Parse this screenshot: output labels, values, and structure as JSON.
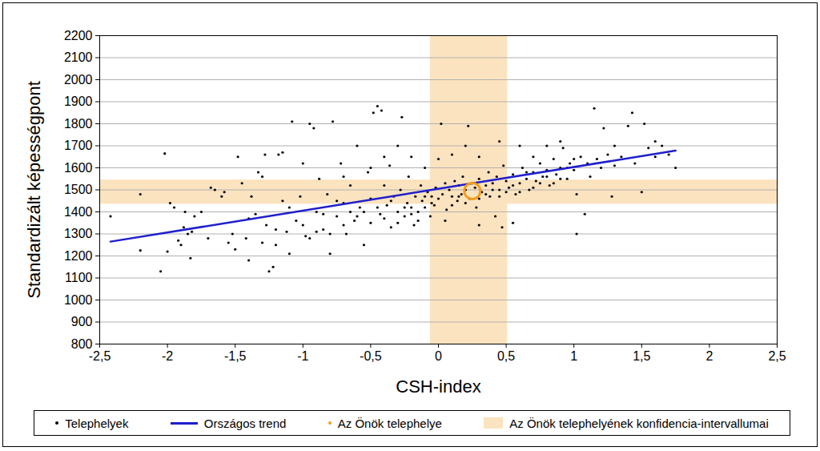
{
  "chart_data": {
    "type": "scatter",
    "x_label": "CSH-index",
    "y_label": "Standardizált képességpont",
    "xlim": [
      -2.5,
      2.5
    ],
    "xticks": [
      {
        "value": -2.5,
        "label": "-2,5"
      },
      -2,
      {
        "value": -1.5,
        "label": "-1,5"
      },
      -1,
      {
        "value": -0.5,
        "label": "-0,5"
      },
      0,
      {
        "value": 0.5,
        "label": "0,5"
      },
      1,
      {
        "value": 1.5,
        "label": "1,5"
      },
      2,
      {
        "value": 2.5,
        "label": "2,5"
      }
    ],
    "ylim": [
      800,
      2200
    ],
    "yticks": [
      800,
      900,
      1000,
      1100,
      1200,
      1300,
      1400,
      1500,
      1600,
      1700,
      1800,
      1900,
      2000,
      2100,
      2200
    ],
    "grid": true,
    "legend": "bottom",
    "confidence_intervals": {
      "name": "Az Önök telephelyének konfidencia-intervallumai",
      "color": "#fbe3bf",
      "x": [
        -0.06,
        0.51
      ],
      "y": [
        1435,
        1545
      ]
    },
    "series": [
      {
        "name": "Telephelyek",
        "type": "scatter",
        "color": "#000000",
        "marker": "dot",
        "points": [
          [
            -2.42,
            1380
          ],
          [
            -2.2,
            1480
          ],
          [
            -2.2,
            1225
          ],
          [
            -2.05,
            1130
          ],
          [
            -2.02,
            1665
          ],
          [
            -2.0,
            1220
          ],
          [
            -1.98,
            1440
          ],
          [
            -1.95,
            1420
          ],
          [
            -1.92,
            1270
          ],
          [
            -1.9,
            1250
          ],
          [
            -1.88,
            1330
          ],
          [
            -1.87,
            1400
          ],
          [
            -1.85,
            1300
          ],
          [
            -1.83,
            1190
          ],
          [
            -1.82,
            1310
          ],
          [
            -1.8,
            1380
          ],
          [
            -1.75,
            1400
          ],
          [
            -1.7,
            1280
          ],
          [
            -1.68,
            1510
          ],
          [
            -1.65,
            1500
          ],
          [
            -1.6,
            1470
          ],
          [
            -1.58,
            1490
          ],
          [
            -1.55,
            1260
          ],
          [
            -1.52,
            1300
          ],
          [
            -1.5,
            1230
          ],
          [
            -1.48,
            1650
          ],
          [
            -1.45,
            1530
          ],
          [
            -1.42,
            1280
          ],
          [
            -1.4,
            1370
          ],
          [
            -1.4,
            1180
          ],
          [
            -1.38,
            1470
          ],
          [
            -1.35,
            1390
          ],
          [
            -1.33,
            1580
          ],
          [
            -1.3,
            1560
          ],
          [
            -1.3,
            1260
          ],
          [
            -1.28,
            1660
          ],
          [
            -1.27,
            1340
          ],
          [
            -1.25,
            1130
          ],
          [
            -1.22,
            1150
          ],
          [
            -1.2,
            1250
          ],
          [
            -1.2,
            1320
          ],
          [
            -1.18,
            1660
          ],
          [
            -1.15,
            1670
          ],
          [
            -1.15,
            1450
          ],
          [
            -1.12,
            1310
          ],
          [
            -1.1,
            1420
          ],
          [
            -1.1,
            1210
          ],
          [
            -1.08,
            1810
          ],
          [
            -1.05,
            1360
          ],
          [
            -1.02,
            1470
          ],
          [
            -1.0,
            1620
          ],
          [
            -1.0,
            1340
          ],
          [
            -0.98,
            1290
          ],
          [
            -0.95,
            1800
          ],
          [
            -0.95,
            1280
          ],
          [
            -0.92,
            1780
          ],
          [
            -0.9,
            1400
          ],
          [
            -0.9,
            1310
          ],
          [
            -0.88,
            1550
          ],
          [
            -0.85,
            1320
          ],
          [
            -0.85,
            1390
          ],
          [
            -0.82,
            1480
          ],
          [
            -0.8,
            1210
          ],
          [
            -0.8,
            1300
          ],
          [
            -0.78,
            1810
          ],
          [
            -0.75,
            1380
          ],
          [
            -0.75,
            1450
          ],
          [
            -0.72,
            1620
          ],
          [
            -0.7,
            1440
          ],
          [
            -0.7,
            1340
          ],
          [
            -0.7,
            1560
          ],
          [
            -0.68,
            1300
          ],
          [
            -0.65,
            1520
          ],
          [
            -0.65,
            1400
          ],
          [
            -0.62,
            1360
          ],
          [
            -0.6,
            1700
          ],
          [
            -0.6,
            1380
          ],
          [
            -0.58,
            1420
          ],
          [
            -0.55,
            1250
          ],
          [
            -0.55,
            1400
          ],
          [
            -0.52,
            1580
          ],
          [
            -0.5,
            1460
          ],
          [
            -0.5,
            1350
          ],
          [
            -0.5,
            1600
          ],
          [
            -0.48,
            1850
          ],
          [
            -0.45,
            1880
          ],
          [
            -0.45,
            1420
          ],
          [
            -0.43,
            1390
          ],
          [
            -0.42,
            1860
          ],
          [
            -0.4,
            1520
          ],
          [
            -0.4,
            1370
          ],
          [
            -0.4,
            1650
          ],
          [
            -0.38,
            1430
          ],
          [
            -0.36,
            1610
          ],
          [
            -0.35,
            1330
          ],
          [
            -0.35,
            1450
          ],
          [
            -0.33,
            1470
          ],
          [
            -0.3,
            1400
          ],
          [
            -0.3,
            1350
          ],
          [
            -0.3,
            1700
          ],
          [
            -0.28,
            1500
          ],
          [
            -0.27,
            1830
          ],
          [
            -0.25,
            1380
          ],
          [
            -0.25,
            1420
          ],
          [
            -0.23,
            1440
          ],
          [
            -0.22,
            1560
          ],
          [
            -0.2,
            1420
          ],
          [
            -0.2,
            1390
          ],
          [
            -0.2,
            1650
          ],
          [
            -0.18,
            1340
          ],
          [
            -0.17,
            1470
          ],
          [
            -0.15,
            1400
          ],
          [
            -0.15,
            1360
          ],
          [
            -0.13,
            1520
          ],
          [
            -0.12,
            1450
          ],
          [
            -0.1,
            1420
          ],
          [
            -0.1,
            1470
          ],
          [
            -0.1,
            1600
          ],
          [
            -0.08,
            1490
          ],
          [
            -0.06,
            1380
          ],
          [
            -0.05,
            1470
          ],
          [
            -0.05,
            1440
          ],
          [
            -0.03,
            1430
          ],
          [
            -0.02,
            1510
          ],
          [
            0.0,
            1460
          ],
          [
            0.0,
            1640
          ],
          [
            0.02,
            1800
          ],
          [
            0.03,
            1480
          ],
          [
            0.05,
            1530
          ],
          [
            0.05,
            1360
          ],
          [
            0.06,
            1410
          ],
          [
            0.08,
            1500
          ],
          [
            0.1,
            1470
          ],
          [
            0.1,
            1430
          ],
          [
            0.1,
            1660
          ],
          [
            0.12,
            1540
          ],
          [
            0.14,
            1450
          ],
          [
            0.15,
            1520
          ],
          [
            0.15,
            1470
          ],
          [
            0.17,
            1480
          ],
          [
            0.18,
            1560
          ],
          [
            0.2,
            1500
          ],
          [
            0.2,
            1440
          ],
          [
            0.2,
            1700
          ],
          [
            0.22,
            1790
          ],
          [
            0.23,
            1460
          ],
          [
            0.25,
            1530
          ],
          [
            0.27,
            1510
          ],
          [
            0.28,
            1420
          ],
          [
            0.3,
            1550
          ],
          [
            0.3,
            1460
          ],
          [
            0.3,
            1650
          ],
          [
            0.3,
            1340
          ],
          [
            0.32,
            1490
          ],
          [
            0.35,
            1520
          ],
          [
            0.35,
            1480
          ],
          [
            0.37,
            1580
          ],
          [
            0.38,
            1470
          ],
          [
            0.4,
            1530
          ],
          [
            0.4,
            1500
          ],
          [
            0.42,
            1380
          ],
          [
            0.43,
            1560
          ],
          [
            0.45,
            1500
          ],
          [
            0.45,
            1470
          ],
          [
            0.45,
            1720
          ],
          [
            0.47,
            1330
          ],
          [
            0.48,
            1610
          ],
          [
            0.5,
            1540
          ],
          [
            0.5,
            1490
          ],
          [
            0.52,
            1510
          ],
          [
            0.55,
            1570
          ],
          [
            0.55,
            1520
          ],
          [
            0.55,
            1350
          ],
          [
            0.57,
            1480
          ],
          [
            0.6,
            1530
          ],
          [
            0.6,
            1490
          ],
          [
            0.6,
            1700
          ],
          [
            0.62,
            1600
          ],
          [
            0.65,
            1550
          ],
          [
            0.65,
            1580
          ],
          [
            0.67,
            1500
          ],
          [
            0.7,
            1580
          ],
          [
            0.7,
            1510
          ],
          [
            0.7,
            1650
          ],
          [
            0.72,
            1540
          ],
          [
            0.75,
            1620
          ],
          [
            0.75,
            1530
          ],
          [
            0.77,
            1560
          ],
          [
            0.8,
            1590
          ],
          [
            0.8,
            1560
          ],
          [
            0.8,
            1700
          ],
          [
            0.82,
            1520
          ],
          [
            0.85,
            1640
          ],
          [
            0.85,
            1530
          ],
          [
            0.87,
            1570
          ],
          [
            0.9,
            1600
          ],
          [
            0.9,
            1550
          ],
          [
            0.9,
            1720
          ],
          [
            0.92,
            1690
          ],
          [
            0.95,
            1550
          ],
          [
            0.95,
            1600
          ],
          [
            0.97,
            1620
          ],
          [
            1.0,
            1590
          ],
          [
            1.0,
            1640
          ],
          [
            1.02,
            1480
          ],
          [
            1.02,
            1300
          ],
          [
            1.05,
            1650
          ],
          [
            1.08,
            1390
          ],
          [
            1.1,
            1620
          ],
          [
            1.12,
            1560
          ],
          [
            1.15,
            1870
          ],
          [
            1.17,
            1640
          ],
          [
            1.2,
            1600
          ],
          [
            1.22,
            1780
          ],
          [
            1.25,
            1660
          ],
          [
            1.28,
            1470
          ],
          [
            1.3,
            1610
          ],
          [
            1.3,
            1700
          ],
          [
            1.35,
            1650
          ],
          [
            1.4,
            1790
          ],
          [
            1.43,
            1850
          ],
          [
            1.45,
            1620
          ],
          [
            1.5,
            1490
          ],
          [
            1.52,
            1800
          ],
          [
            1.55,
            1690
          ],
          [
            1.6,
            1720
          ],
          [
            1.6,
            1650
          ],
          [
            1.65,
            1700
          ],
          [
            1.7,
            1660
          ],
          [
            1.75,
            1600
          ]
        ]
      },
      {
        "name": "Országos trend",
        "type": "line",
        "color": "#1f1fcc",
        "line_style": "solid",
        "points": [
          [
            -2.42,
            1265
          ],
          [
            1.75,
            1678
          ]
        ]
      },
      {
        "name": "Az Önök telephelye",
        "type": "scatter",
        "color": "#f39c1f",
        "marker": "circle",
        "points": [
          [
            0.25,
            1495
          ]
        ]
      }
    ]
  }
}
